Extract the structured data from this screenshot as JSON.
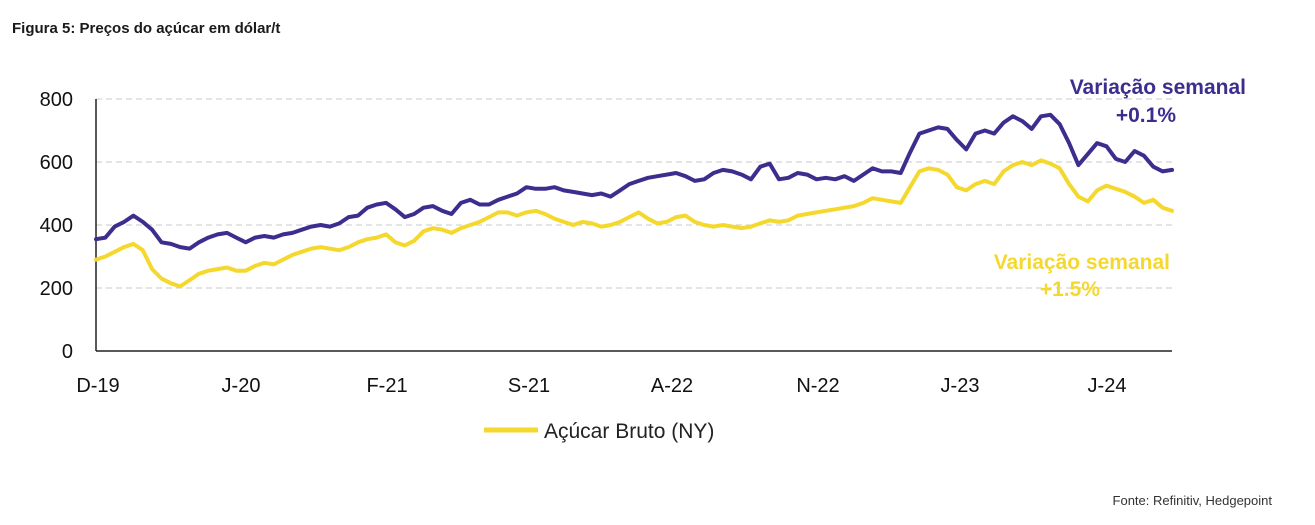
{
  "figure_title": "Figura 5: Preços do açúcar em dólar/t",
  "source": "Fonte: Refinitiv,  Hedgepoint",
  "chart_data": {
    "type": "line",
    "title": "Figura 5: Preços do açúcar em dólar/t",
    "x_tick_labels": [
      "D-19",
      "J-20",
      "F-21",
      "S-21",
      "A-22",
      "N-22",
      "J-23",
      "J-24"
    ],
    "ylim": [
      0,
      800
    ],
    "y_ticks": [
      0,
      200,
      400,
      600,
      800
    ],
    "grid": "horizontal dashed",
    "legend": {
      "placement": "bottom-center",
      "entries": [
        "Açúcar Bruto (NY)"
      ]
    },
    "annotations": [
      {
        "line1": "Variação semanal",
        "line2": "+0.1%",
        "color": "#3b2e8f"
      },
      {
        "line1": "Variação semanal",
        "line2": "+1.5%",
        "color": "#f5d82e"
      }
    ],
    "series": [
      {
        "name": "",
        "color": "#3b2e8f",
        "values": [
          355,
          360,
          395,
          410,
          430,
          410,
          385,
          345,
          340,
          330,
          325,
          345,
          360,
          370,
          375,
          360,
          345,
          360,
          365,
          360,
          370,
          375,
          385,
          395,
          400,
          395,
          405,
          425,
          430,
          455,
          465,
          470,
          450,
          425,
          435,
          455,
          460,
          445,
          435,
          470,
          480,
          465,
          465,
          480,
          490,
          500,
          520,
          515,
          515,
          520,
          510,
          505,
          500,
          495,
          500,
          490,
          510,
          530,
          540,
          550,
          555,
          560,
          565,
          555,
          540,
          545,
          565,
          575,
          570,
          560,
          545,
          585,
          595,
          545,
          550,
          565,
          560,
          545,
          550,
          545,
          555,
          540,
          560,
          580,
          570,
          570,
          565,
          630,
          690,
          700,
          710,
          705,
          670,
          640,
          690,
          700,
          690,
          725,
          745,
          730,
          705,
          745,
          750,
          720,
          660,
          590,
          625,
          660,
          650,
          610,
          600,
          635,
          620,
          585,
          570,
          575
        ]
      },
      {
        "name": "Açúcar Bruto (NY)",
        "color": "#f5d82e",
        "values": [
          290,
          300,
          315,
          330,
          340,
          320,
          260,
          230,
          215,
          205,
          225,
          245,
          255,
          260,
          265,
          255,
          255,
          270,
          280,
          275,
          290,
          305,
          315,
          325,
          330,
          325,
          320,
          330,
          345,
          355,
          360,
          370,
          345,
          335,
          350,
          380,
          390,
          385,
          375,
          390,
          400,
          410,
          425,
          440,
          440,
          430,
          440,
          445,
          435,
          420,
          410,
          400,
          410,
          405,
          395,
          400,
          410,
          425,
          440,
          420,
          405,
          410,
          425,
          430,
          410,
          400,
          395,
          400,
          395,
          390,
          395,
          405,
          415,
          410,
          415,
          430,
          435,
          440,
          445,
          450,
          455,
          460,
          470,
          485,
          480,
          475,
          470,
          520,
          570,
          580,
          575,
          560,
          520,
          510,
          530,
          540,
          530,
          570,
          590,
          600,
          590,
          605,
          595,
          580,
          530,
          490,
          475,
          510,
          525,
          515,
          505,
          490,
          470,
          480,
          455,
          445
        ]
      }
    ]
  }
}
